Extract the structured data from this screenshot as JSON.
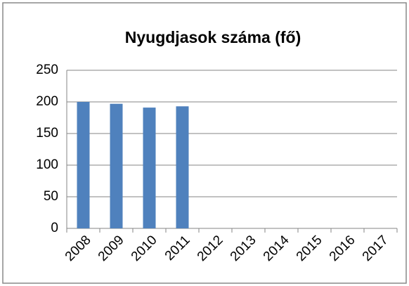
{
  "chart_data": {
    "type": "bar",
    "title": "Nyugdjasok száma (fő)",
    "categories": [
      "2008",
      "2009",
      "2010",
      "2011",
      "2012",
      "2013",
      "2014",
      "2015",
      "2016",
      "2017"
    ],
    "values": [
      200,
      197,
      191,
      193,
      null,
      null,
      null,
      null,
      null,
      null
    ],
    "color": "#4f81bd",
    "ylim": [
      0,
      250
    ],
    "yticks": [
      0,
      50,
      100,
      150,
      200,
      250
    ],
    "grid": true
  }
}
